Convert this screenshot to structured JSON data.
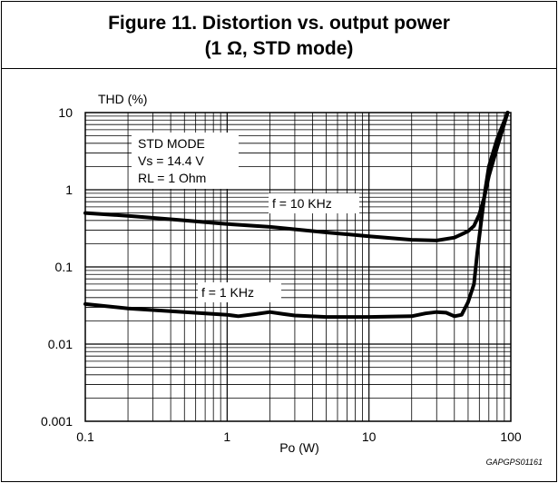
{
  "chart_data": {
    "type": "line",
    "title": "Figure 11. Distortion vs. output power",
    "subtitle": "(1 Ω, STD mode)",
    "xlabel": "Po (W)",
    "ylabel": "THD (%)",
    "x_scale": "log",
    "y_scale": "log",
    "xlim": [
      0.1,
      100
    ],
    "ylim": [
      0.001,
      10
    ],
    "x_ticks": [
      "0.1",
      "1",
      "10",
      "100"
    ],
    "y_ticks": [
      "10",
      "1",
      "0.1",
      "0.01",
      "0.001"
    ],
    "grid": true,
    "conditions": [
      "STD  MODE",
      "Vs = 14.4 V",
      "RL = 1 Ohm"
    ],
    "series": [
      {
        "name": "f = 10 KHz",
        "x": [
          0.1,
          0.2,
          0.5,
          1,
          2,
          5,
          10,
          20,
          30,
          40,
          50,
          55,
          60,
          65,
          70,
          80,
          95
        ],
        "y": [
          0.5,
          0.46,
          0.4,
          0.36,
          0.33,
          0.28,
          0.25,
          0.225,
          0.22,
          0.24,
          0.29,
          0.34,
          0.48,
          0.8,
          1.5,
          3.5,
          10
        ]
      },
      {
        "name": "f = 1 KHz",
        "x": [
          0.1,
          0.2,
          0.5,
          1,
          1.2,
          1.6,
          2,
          2.5,
          3,
          5,
          10,
          20,
          25,
          30,
          35,
          40,
          45,
          50,
          55,
          58,
          62,
          66,
          70,
          80,
          95
        ],
        "y": [
          0.033,
          0.029,
          0.026,
          0.024,
          0.023,
          0.0245,
          0.026,
          0.0245,
          0.0235,
          0.0225,
          0.0225,
          0.023,
          0.025,
          0.026,
          0.0255,
          0.023,
          0.024,
          0.035,
          0.06,
          0.15,
          0.4,
          1.0,
          2.0,
          4.5,
          10
        ]
      }
    ],
    "figure_id": "GAPGPS01161"
  }
}
